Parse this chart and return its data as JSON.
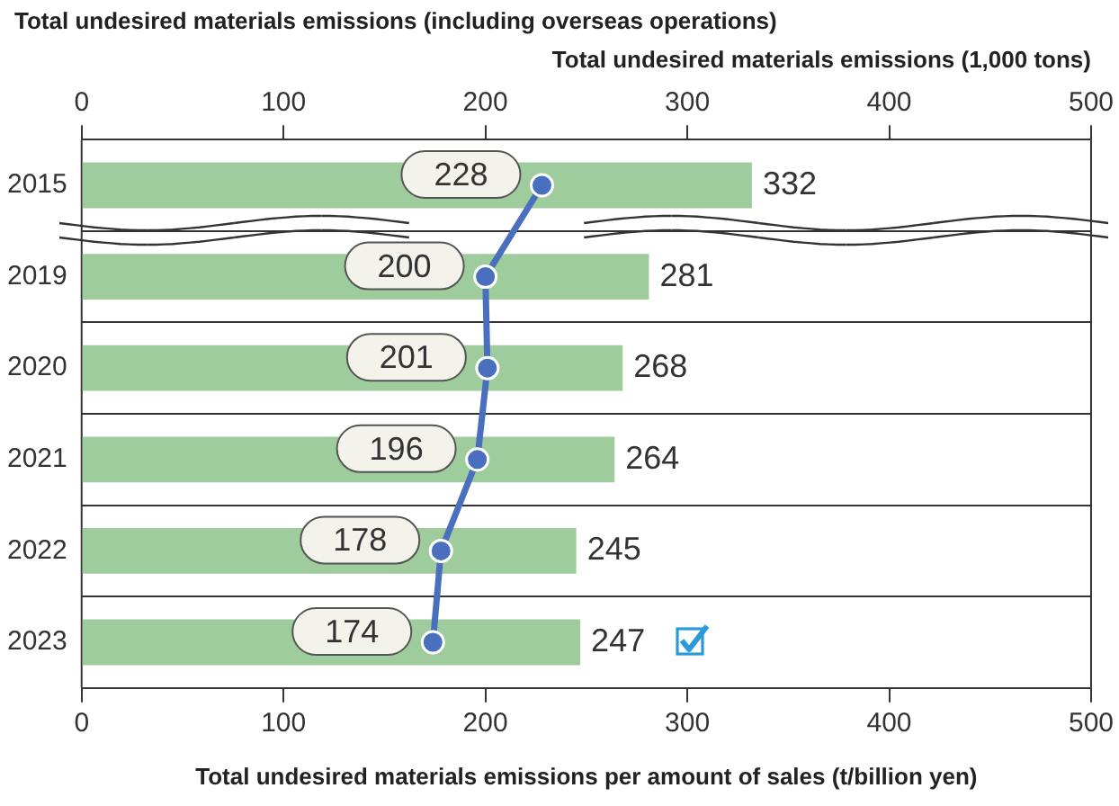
{
  "chart_data": {
    "type": "bar",
    "orientation": "horizontal",
    "title": "Total undesired materials emissions (including overseas operations)",
    "categories": [
      "2015",
      "2019",
      "2020",
      "2021",
      "2022",
      "2023"
    ],
    "series": [
      {
        "type": "bar",
        "axis": "x2",
        "color": "#9fcc9c",
        "values": [
          332,
          281,
          268,
          264,
          245,
          247
        ]
      },
      {
        "type": "line",
        "color": "#4a6fbf",
        "values": [
          228,
          200,
          201,
          196,
          178,
          174
        ]
      }
    ],
    "x2label": "Total undesired materials emissions (1,000 tons)",
    "x2lim": [
      0,
      500
    ],
    "x2ticks": [
      0,
      100,
      200,
      300,
      400,
      500
    ],
    "xlabel": "Total undesired materials emissions per amount of sales (t/billion yen)",
    "xlim": [
      0,
      500
    ],
    "xticks": [
      0,
      100,
      200,
      300,
      400,
      500
    ],
    "data_labels": true,
    "grid": "y",
    "legend": false,
    "marker": "circle",
    "line_style": "solid"
  }
}
